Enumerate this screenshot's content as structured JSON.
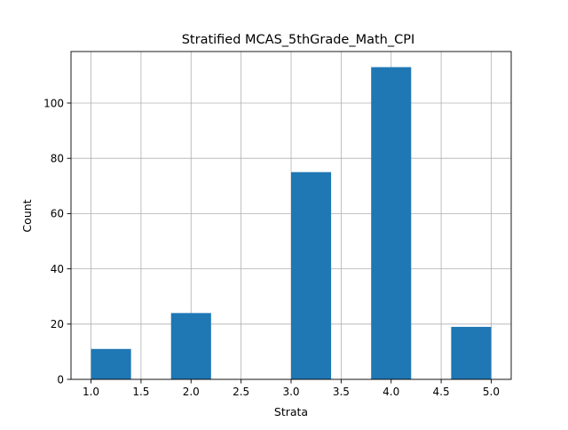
{
  "chart_data": {
    "type": "bar",
    "title": "Stratified MCAS_5thGrade_Math_CPI",
    "xlabel": "Strata",
    "ylabel": "Count",
    "xlim": [
      0.8,
      5.2
    ],
    "ylim": [
      0,
      118.65
    ],
    "xticks": [
      "1.0",
      "1.5",
      "2.0",
      "2.5",
      "3.0",
      "3.5",
      "4.0",
      "4.5",
      "5.0"
    ],
    "yticks": [
      "0",
      "20",
      "40",
      "60",
      "80",
      "100"
    ],
    "grid": true,
    "bar_color": "#1f77b4",
    "bins": [
      {
        "x0": 1.0,
        "x1": 1.4,
        "value": 11
      },
      {
        "x0": 1.4,
        "x1": 1.8,
        "value": 0
      },
      {
        "x0": 1.8,
        "x1": 2.2,
        "value": 24
      },
      {
        "x0": 2.2,
        "x1": 2.6,
        "value": 0
      },
      {
        "x0": 2.6,
        "x1": 3.0,
        "value": 0
      },
      {
        "x0": 3.0,
        "x1": 3.4,
        "value": 75
      },
      {
        "x0": 3.4,
        "x1": 3.8,
        "value": 0
      },
      {
        "x0": 3.8,
        "x1": 4.2,
        "value": 113
      },
      {
        "x0": 4.2,
        "x1": 4.6,
        "value": 0
      },
      {
        "x0": 4.6,
        "x1": 5.0,
        "value": 19
      }
    ]
  }
}
